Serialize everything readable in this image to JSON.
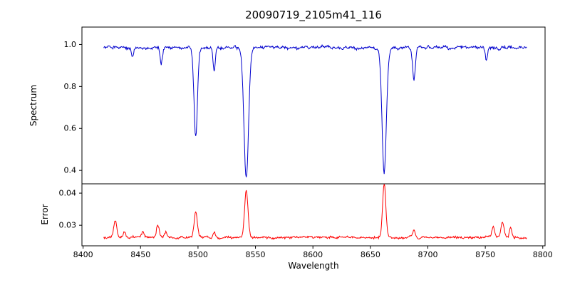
{
  "title": "20090719_2105m41_116",
  "x_axis": {
    "label": "Wavelength",
    "lim": [
      8399,
      8802
    ],
    "ticks": [
      {
        "value": 8400,
        "label": "8400"
      },
      {
        "value": 8450,
        "label": "8450"
      },
      {
        "value": 8500,
        "label": "8500"
      },
      {
        "value": 8550,
        "label": "8550"
      },
      {
        "value": 8600,
        "label": "8600"
      },
      {
        "value": 8650,
        "label": "8650"
      },
      {
        "value": 8700,
        "label": "8700"
      },
      {
        "value": 8750,
        "label": "8750"
      },
      {
        "value": 8800,
        "label": "8800"
      }
    ]
  },
  "chart_data": [
    {
      "type": "line",
      "name": "spectrum",
      "color": "#0000cd",
      "ylabel": "Spectrum",
      "ylim": [
        0.336,
        1.083
      ],
      "yticks": [
        {
          "value": 0.4,
          "label": "0.4"
        },
        {
          "value": 0.6,
          "label": "0.6"
        },
        {
          "value": 0.8,
          "label": "0.8"
        },
        {
          "value": 1.0,
          "label": "1.0"
        }
      ],
      "x_start": 8418,
      "x_end": 8786,
      "x_step": 0.5,
      "continuum": 0.985,
      "noise_amplitude": 0.012,
      "absorption_lines": [
        {
          "center": 8443,
          "depth": 0.045,
          "width": 1.0
        },
        {
          "center": 8468,
          "depth": 0.075,
          "width": 1.0
        },
        {
          "center": 8498,
          "depth": 0.43,
          "width": 1.5
        },
        {
          "center": 8514,
          "depth": 0.115,
          "width": 1.0
        },
        {
          "center": 8542,
          "depth": 0.62,
          "width": 2.0
        },
        {
          "center": 8662,
          "depth": 0.59,
          "width": 1.9
        },
        {
          "center": 8688,
          "depth": 0.15,
          "width": 1.2
        },
        {
          "center": 8751,
          "depth": 0.06,
          "width": 1.0
        }
      ],
      "line_minima_note": "Deep absorption minima read from plot: ~0.56 at 8498, ~0.37 at 8542, ~0.40 at 8662; continuum ~0.98"
    },
    {
      "type": "line",
      "name": "error",
      "color": "#ff0000",
      "ylabel": "Error",
      "ylim": [
        0.0236,
        0.0429
      ],
      "yticks": [
        {
          "value": 0.03,
          "label": "0.03"
        },
        {
          "value": 0.04,
          "label": "0.04"
        }
      ],
      "baseline": 0.0262,
      "noise_amplitude": 0.00045,
      "peaks": [
        {
          "center": 8428,
          "amp": 0.0052,
          "width": 1.3
        },
        {
          "center": 8436,
          "amp": 0.0018,
          "width": 1.0
        },
        {
          "center": 8452,
          "amp": 0.0015,
          "width": 1.0
        },
        {
          "center": 8465,
          "amp": 0.0038,
          "width": 1.2
        },
        {
          "center": 8472,
          "amp": 0.0018,
          "width": 1.0
        },
        {
          "center": 8498,
          "amp": 0.0078,
          "width": 1.4
        },
        {
          "center": 8514,
          "amp": 0.0018,
          "width": 1.0
        },
        {
          "center": 8542,
          "amp": 0.0148,
          "width": 1.5
        },
        {
          "center": 8662,
          "amp": 0.0168,
          "width": 1.4
        },
        {
          "center": 8688,
          "amp": 0.0022,
          "width": 1.1
        },
        {
          "center": 8757,
          "amp": 0.0035,
          "width": 1.1
        },
        {
          "center": 8765,
          "amp": 0.0048,
          "width": 1.3
        },
        {
          "center": 8772,
          "amp": 0.0032,
          "width": 1.0
        }
      ],
      "peak_maxima_note": "Error peaks read from plot: ~0.034 at 8498, ~0.041 at 8542, ~0.043 at 8662; baseline ~0.026"
    }
  ]
}
